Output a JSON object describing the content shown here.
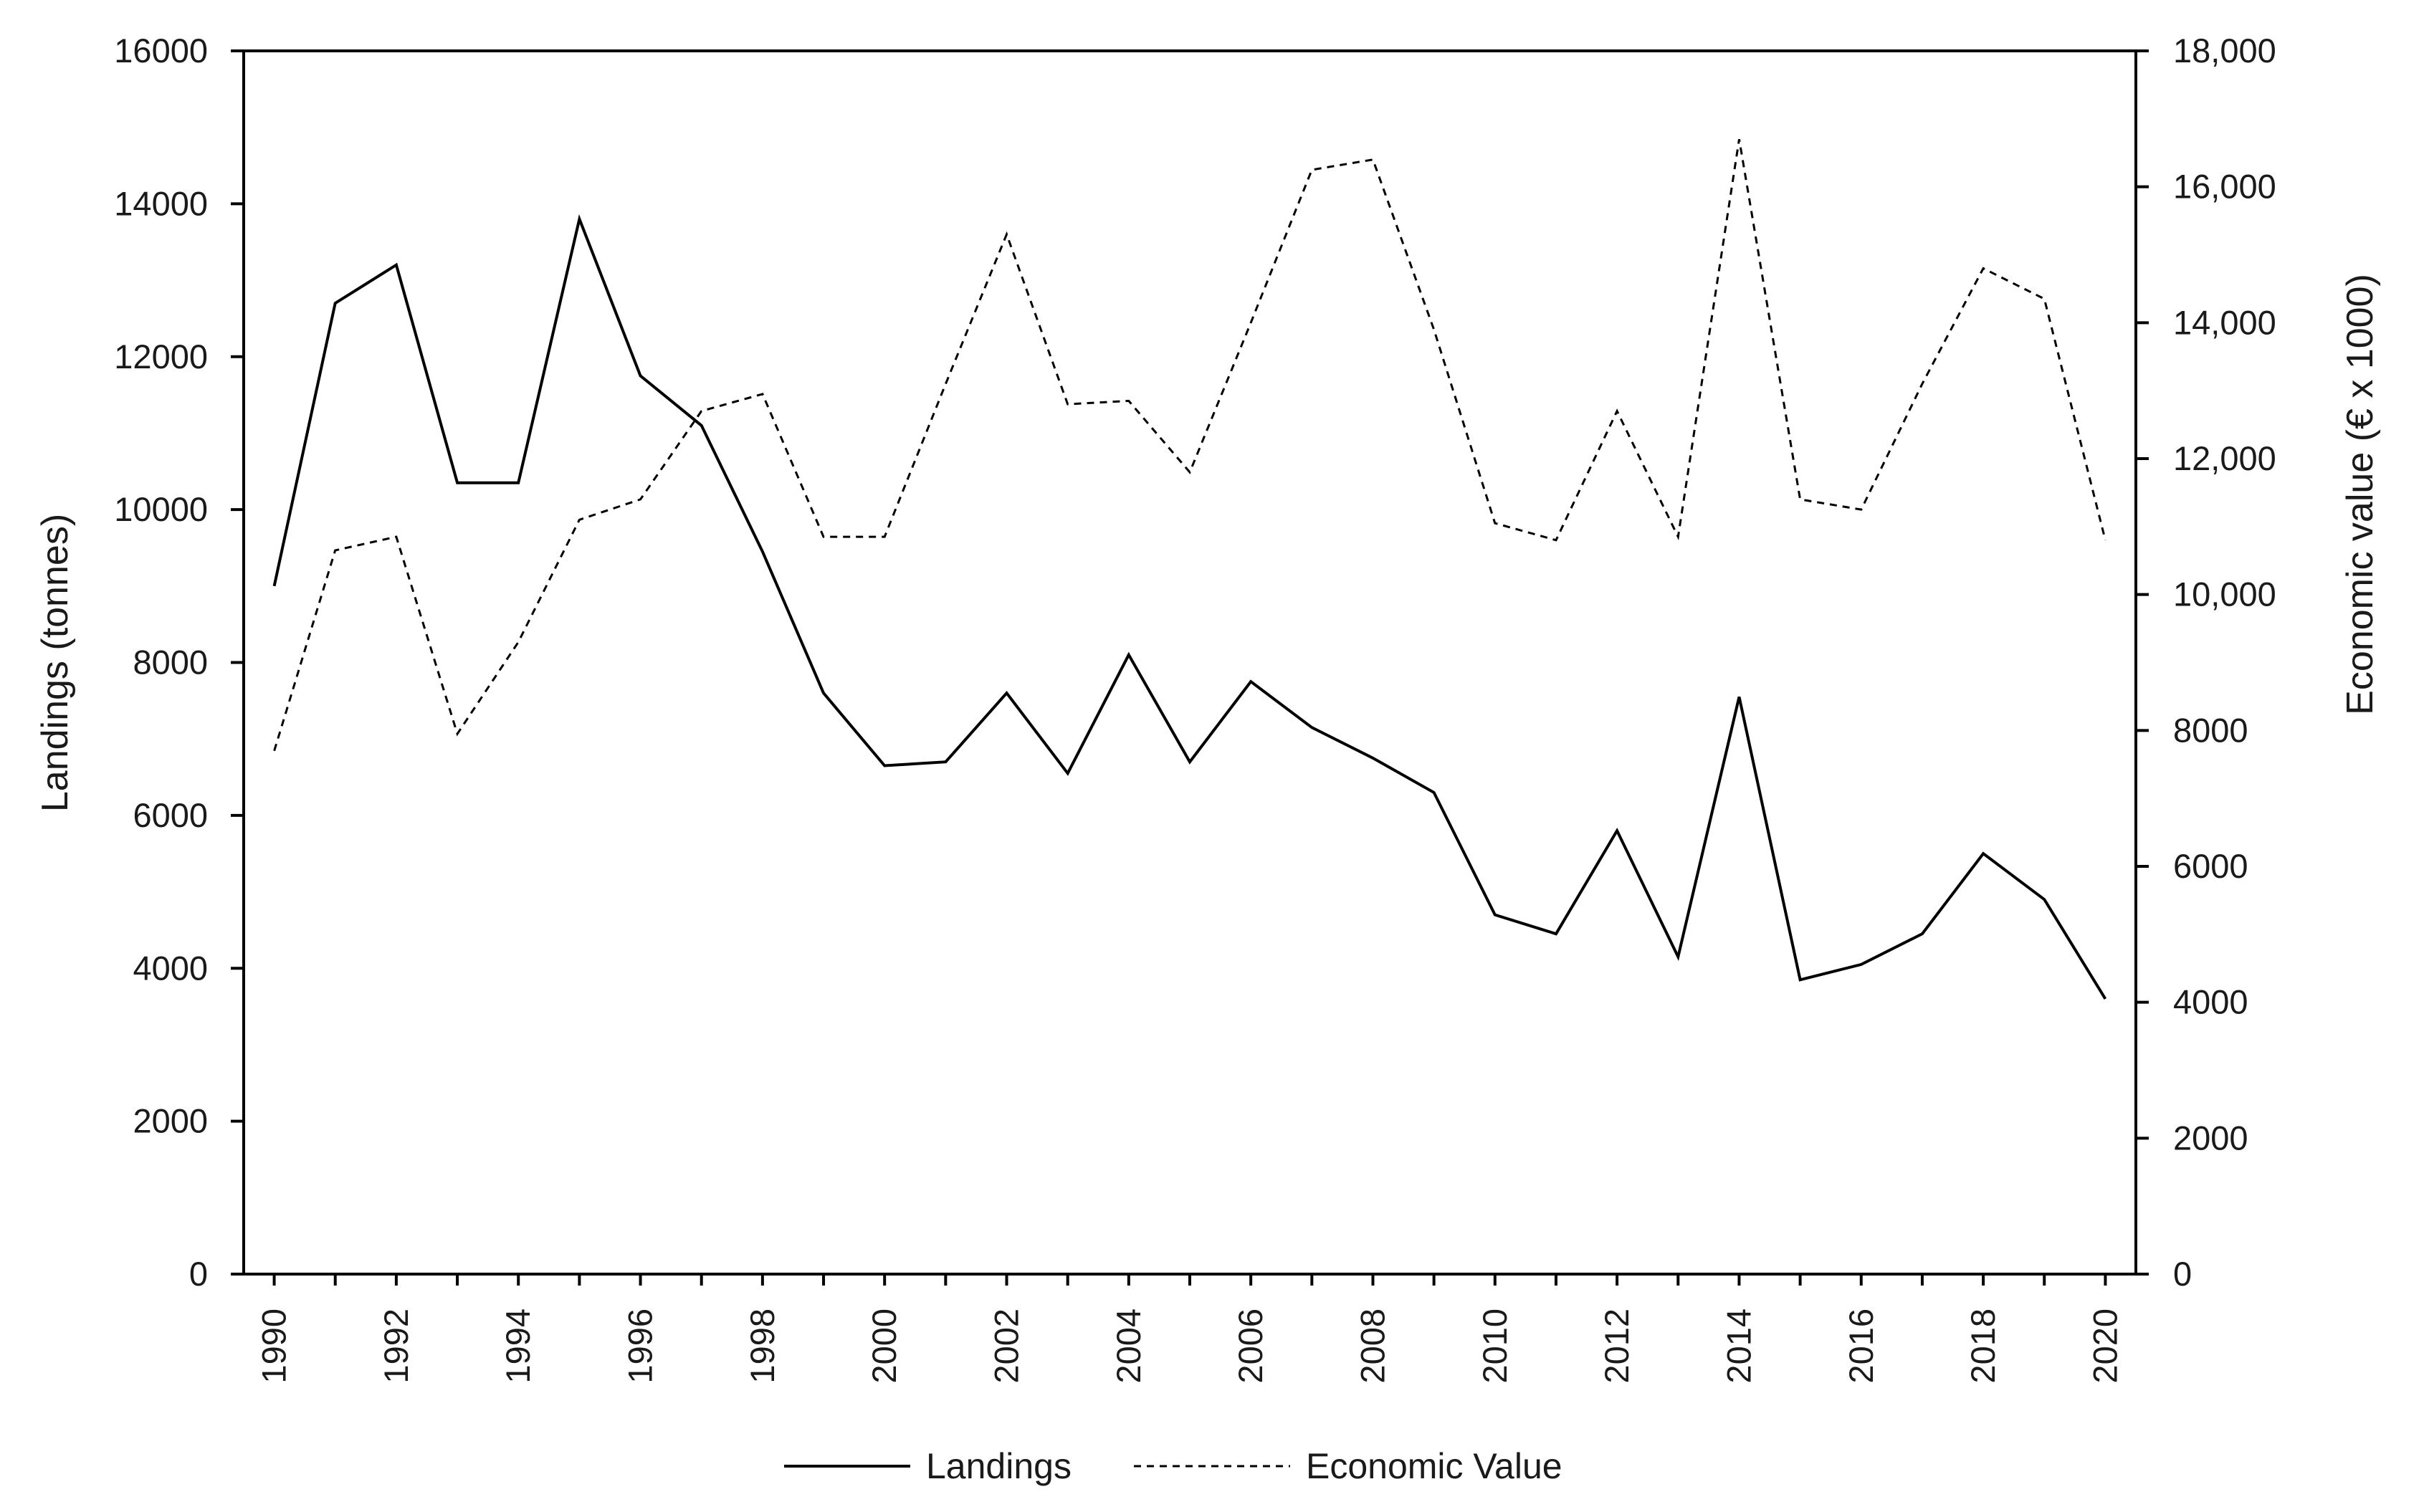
{
  "chart_data": {
    "type": "line",
    "x": [
      1990,
      1991,
      1992,
      1993,
      1994,
      1995,
      1996,
      1997,
      1998,
      1999,
      2000,
      2001,
      2002,
      2003,
      2004,
      2005,
      2006,
      2007,
      2008,
      2009,
      2010,
      2011,
      2012,
      2013,
      2014,
      2015,
      2016,
      2017,
      2018,
      2019,
      2020
    ],
    "x_tick_labels": [
      "1990",
      "1992",
      "1994",
      "1996",
      "1998",
      "2000",
      "2002",
      "2004",
      "2006",
      "2008",
      "2010",
      "2012",
      "2014",
      "2016",
      "2018",
      "2020"
    ],
    "xlim": [
      1989.5,
      2020.5
    ],
    "series": [
      {
        "name": "Landings",
        "axis": "left",
        "line_style": "solid",
        "color": "#000000",
        "values": [
          9000,
          12700,
          13200,
          10350,
          10350,
          13800,
          11750,
          11100,
          9450,
          7600,
          6650,
          6700,
          7600,
          6550,
          8100,
          6700,
          7750,
          7150,
          6750,
          6300,
          4700,
          4450,
          5800,
          4150,
          7550,
          3850,
          4050,
          4450,
          5500,
          4900,
          3600
        ]
      },
      {
        "name": "Economic Value",
        "axis": "right",
        "line_style": "dashed",
        "color": "#000000",
        "values": [
          7700,
          10650,
          10850,
          7950,
          9300,
          11100,
          11400,
          12700,
          12950,
          10850,
          10850,
          13100,
          15300,
          12800,
          12850,
          11800,
          14000,
          16250,
          16400,
          13900,
          11050,
          10800,
          12700,
          10850,
          16700,
          11400,
          11250,
          13100,
          14800,
          14350,
          10800
        ]
      }
    ],
    "ylabel": "Landings (tonnes)",
    "ylim": [
      0,
      16000
    ],
    "y_ticks": [
      0,
      2000,
      4000,
      6000,
      8000,
      10000,
      12000,
      14000,
      16000
    ],
    "y_tick_labels": [
      "0",
      "2000",
      "4000",
      "6000",
      "8000",
      "10000",
      "12000",
      "14000",
      "16000"
    ],
    "y2label": "Economic value (€ x 1000)",
    "y2lim": [
      0,
      18000
    ],
    "y2_ticks": [
      0,
      2000,
      4000,
      6000,
      8000,
      10000,
      12000,
      14000,
      16000,
      18000
    ],
    "y2_tick_labels": [
      "0",
      "2000",
      "4000",
      "6000",
      "8000",
      "10,000",
      "12,000",
      "14,000",
      "16,000",
      "18,000"
    ],
    "grid": false,
    "legend_position": "bottom-center"
  }
}
